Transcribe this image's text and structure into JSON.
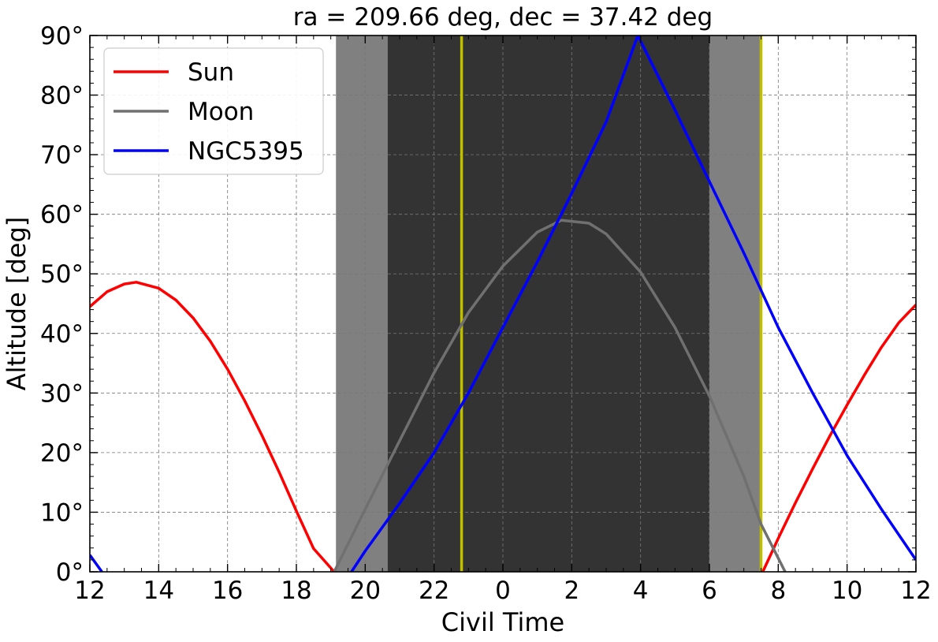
{
  "chart_data": {
    "type": "line",
    "title": "ra = 209.66 deg, dec = 37.42 deg",
    "xlabel": "Civil Time",
    "ylabel": "Altitude [deg]",
    "xlim": [
      12,
      36
    ],
    "ylim": [
      0,
      90
    ],
    "x_ticks": [
      {
        "value": 12,
        "label": "12"
      },
      {
        "value": 14,
        "label": "14"
      },
      {
        "value": 16,
        "label": "16"
      },
      {
        "value": 18,
        "label": "18"
      },
      {
        "value": 20,
        "label": "20"
      },
      {
        "value": 22,
        "label": "22"
      },
      {
        "value": 24,
        "label": "0"
      },
      {
        "value": 26,
        "label": "2"
      },
      {
        "value": 28,
        "label": "4"
      },
      {
        "value": 30,
        "label": "6"
      },
      {
        "value": 32,
        "label": "8"
      },
      {
        "value": 34,
        "label": "10"
      },
      {
        "value": 36,
        "label": "12"
      }
    ],
    "y_ticks": [
      {
        "value": 0,
        "label": "0°"
      },
      {
        "value": 10,
        "label": "10°"
      },
      {
        "value": 20,
        "label": "20°"
      },
      {
        "value": 30,
        "label": "30°"
      },
      {
        "value": 40,
        "label": "40°"
      },
      {
        "value": 50,
        "label": "50°"
      },
      {
        "value": 60,
        "label": "60°"
      },
      {
        "value": 70,
        "label": "70°"
      },
      {
        "value": 80,
        "label": "80°"
      },
      {
        "value": 90,
        "label": "90°"
      }
    ],
    "grid": true,
    "legend_position": "top-left",
    "shaded_regions": [
      {
        "x0": 19.15,
        "x1": 20.65,
        "color": "#808080"
      },
      {
        "x0": 20.65,
        "x1": 30.0,
        "color": "#333333"
      },
      {
        "x0": 30.0,
        "x1": 31.5,
        "color": "#808080"
      }
    ],
    "vertical_lines": [
      {
        "x": 22.8,
        "color": "#bfbf00"
      },
      {
        "x": 31.5,
        "color": "#bfbf00"
      }
    ],
    "series": [
      {
        "name": "Sun",
        "color": "#ff0000",
        "x": [
          12,
          12.5,
          13,
          13.35,
          14,
          14.5,
          15,
          15.5,
          16,
          16.5,
          17,
          17.5,
          18,
          18.5,
          19.1,
          31.55,
          32,
          32.5,
          33,
          33.5,
          34,
          34.5,
          35,
          35.5,
          36
        ],
        "y": [
          44.5,
          47.0,
          48.3,
          48.6,
          47.6,
          45.6,
          42.6,
          38.7,
          34.0,
          28.7,
          22.9,
          16.7,
          10.2,
          3.9,
          0.0,
          0.0,
          5.6,
          11.6,
          17.3,
          22.8,
          28.0,
          33.0,
          37.7,
          41.8,
          44.8
        ]
      },
      {
        "name": "Moon",
        "color": "#707070",
        "x": [
          19.1,
          20,
          21,
          22,
          23,
          24,
          25,
          25.7,
          26.5,
          27,
          28,
          29,
          30,
          31,
          31.5,
          32.2
        ],
        "y": [
          0.0,
          10.5,
          22.0,
          33.4,
          43.5,
          51.3,
          57.0,
          59.0,
          58.5,
          56.7,
          50.3,
          41.0,
          29.5,
          16.0,
          8.0,
          0.0
        ]
      },
      {
        "name": "NGC5395",
        "color": "#0000ff",
        "x": [
          12,
          12.35,
          19.6,
          20,
          21,
          22,
          23,
          24,
          25,
          26,
          27,
          27.92,
          29,
          30,
          31,
          32,
          33,
          34,
          35,
          36
        ],
        "y": [
          2.8,
          0.0,
          0.0,
          3.5,
          11.5,
          20.0,
          30.0,
          41.0,
          52.0,
          63.5,
          75.5,
          90.0,
          77.5,
          65.5,
          53.5,
          41.0,
          30.0,
          19.5,
          10.5,
          2.0
        ]
      }
    ]
  }
}
